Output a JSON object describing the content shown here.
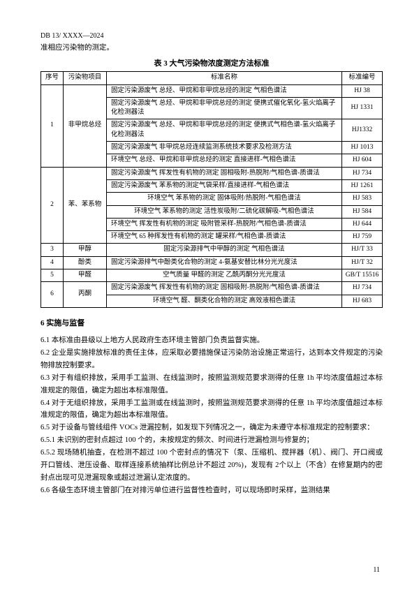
{
  "doc_code": "DB 13/ XXXX—2024",
  "intro": "准相应污染物的测定。",
  "table_title": "表 3  大气污染物浓度测定方法标准",
  "headers": {
    "seq": "序号",
    "item": "污染物项目",
    "name": "标准名称",
    "code": "标准编号"
  },
  "rows": [
    {
      "name": "固定污染源废气  总烃、甲烷和非甲烷总烃的测定  气相色谱法",
      "code": "HJ 38"
    },
    {
      "name": "固定污染源废气  总烃、甲烷和非甲烷总烃的测定  便携式催化氧化-氢火焰离子化检测器法",
      "code": "HJ 1331"
    },
    {
      "name": "固定污染源废气  总烃、甲烷和非甲烷总烃的测定  便携式气相色谱-氢火焰离子化检测器法",
      "code": "HJ1332"
    },
    {
      "name": "固定污染源废气  非甲烷总烃连续监测系统技术要求及检测方法",
      "code": "HJ 1013"
    },
    {
      "name": "环境空气  总烃、甲烷和非甲烷总烃的测定    直接进样-气相色谱法",
      "code": "HJ 604"
    },
    {
      "name": "固定污染源废气  挥发性有机物的测定  固相吸附-热脱附/气相色谱-质谱法",
      "code": "HJ 734"
    },
    {
      "name": "固定污染源废气  苯系物的测定气袋采样/直接进样-气相色谱法",
      "code": "HJ 1261"
    },
    {
      "name": "环境空气 苯系物的测定  固体吸附/热脱附-气相色谱法",
      "code": "HJ 583"
    },
    {
      "name": "环境空气 苯系物的测定  活性炭吸附/二硫化碳解吸-气相色谱法",
      "code": "HJ 584"
    },
    {
      "name": "环境空气 挥发性有机物的测定  吸附管采样-热脱附/气相色谱-质谱法",
      "code": "HJ 644"
    },
    {
      "name": "环境空气   65 种挥发性有机物的测定   罐采样/气相色谱-质谱法",
      "code": "HJ 759"
    },
    {
      "name": "固定污染源排气中甲醇的测定  气相色谱法",
      "code": "HJ/T 33"
    },
    {
      "name": "固定污染源排气中酚类化合物的测定 4-氨基安替比林分光光度法",
      "code": "HJ/T 32"
    },
    {
      "name": "空气质量  甲醛的测定  乙酰丙酮分光光度法",
      "code": "GB/T 15516"
    },
    {
      "name": "固定污染源废气 挥发性有机物的测定 固相吸附-热脱附/气相色谱-质谱法",
      "code": "HJ 734"
    },
    {
      "name": "环境空气 醛、酮类化合物的测定  高效液相色谱法",
      "code": "HJ 683"
    }
  ],
  "items": {
    "1": "非甲烷总烃",
    "2": "苯、苯系物",
    "3": "甲醇",
    "4": "酚类",
    "5": "甲醛",
    "6": "丙酮"
  },
  "section6": "6  实施与监督",
  "p61": "6.1  本标准由县级以上地方人民政府生态环境主管部门负责监督实施。",
  "p62": "6.2  企业是实施排放标准的责任主体，应采取必要措施保证污染防治设施正常运行，达到本文件规定的污染物排放控制要求。",
  "p63": "6.3  对于有组织排放，采用手工监测、在线监测时，按照监测规范要求测得的任意 1h 平均浓度值超过本标准规定的限值，确定为超出本标准限值。",
  "p64": "6.4  对于无组织排放，采用手工监测或在线监测时，按照监测规范要求测得的任意 1h 平均浓度值超过本标准规定的限值，确定为超出本标准限值。",
  "p65": "6.5  对于设备与管线组件 VOCs 泄漏控制，如发现下列情况之一，确定为未遵守本标准规定的控制要求：",
  "p651": "6.5.1 未识别的密封点超过 100 个的，未按规定的频次、时间进行泄漏检测与修复的；",
  "p652": "6.5.2 现场随机抽查，在检测不超过 100 个密封点的情况下（泵、压缩机、搅拌器（机）、阀门、开口阀或开口管线、泄压设备、取样连接系统抽样比例总计不超过 20%)，发现有 2个以上（不含）在修复期内的密封点出现可见泄漏现象或超过泄漏认定浓度的。",
  "p66": "6.6  各级生态环境主管部门在对排污单位进行监督性检查时，可以现场即时采样，监测结果",
  "page_num": "11"
}
